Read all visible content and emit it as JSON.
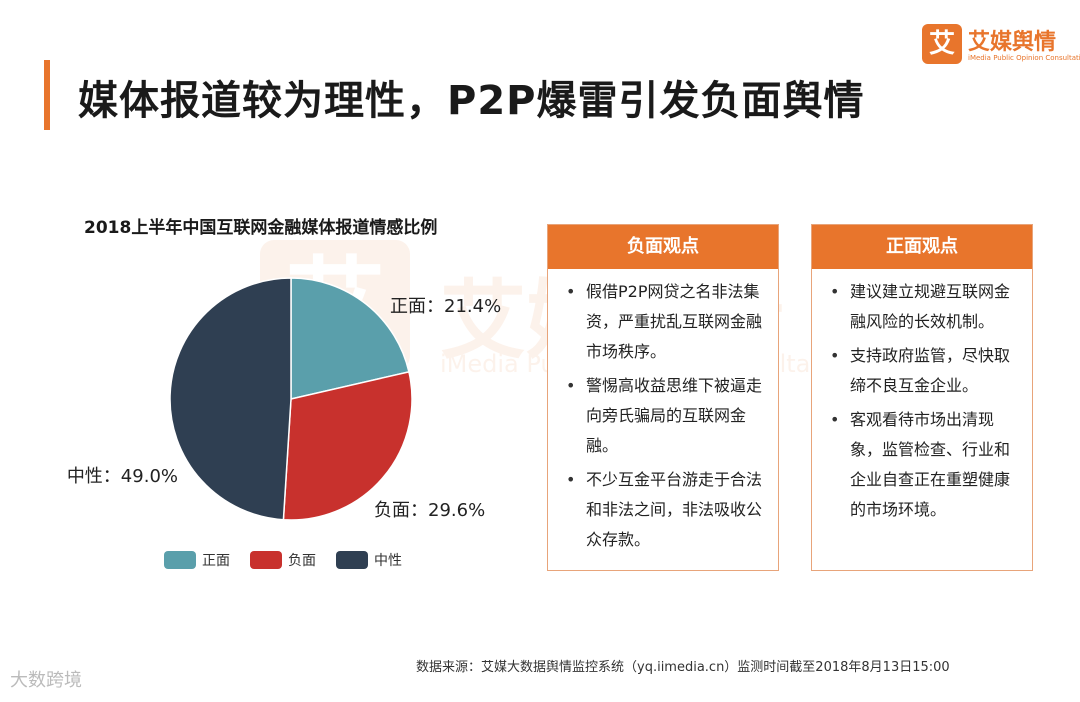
{
  "header": {
    "title": "媒体报道较为理性，P2P爆雷引发负面舆情",
    "logo_mark": "艾",
    "logo_name": "艾媒舆情",
    "logo_sub": "iMedia Public Opinion Consultation"
  },
  "watermark": {
    "mark": "艾",
    "name": "艾媒舆情",
    "sub": "iMedia Public Opinion Consultation"
  },
  "chart_data": {
    "type": "pie",
    "title": "2018上半年中国互联网金融媒体报道情感比例",
    "categories": [
      "正面",
      "负面",
      "中性"
    ],
    "values": [
      21.4,
      29.6,
      49.0
    ],
    "labels": [
      "正面：21.4%",
      "负面：29.6%",
      "中性：49.0%"
    ],
    "colors": [
      "#5a9fab",
      "#c8312d",
      "#2f3f52"
    ],
    "legend_position": "bottom"
  },
  "negative_box": {
    "title": "负面观点",
    "items": [
      "假借P2P网贷之名非法集资，严重扰乱互联网金融市场秩序。",
      "警惕高收益思维下被逼走向旁氏骗局的互联网金融。",
      "不少互金平台游走于合法和非法之间，非法吸收公众存款。"
    ]
  },
  "positive_box": {
    "title": "正面观点",
    "items": [
      "建议建立规避互联网金融风险的长效机制。",
      "支持政府监管，尽快取缔不良互金企业。",
      "客观看待市场出清现象，监管检查、行业和企业自查正在重塑健康的市场环境。"
    ]
  },
  "footer": {
    "source": "数据来源：艾媒大数据舆情监控系统（yq.iimedia.cn）监测时间截至2018年8月13日15:00",
    "watermark": "大数跨境"
  }
}
